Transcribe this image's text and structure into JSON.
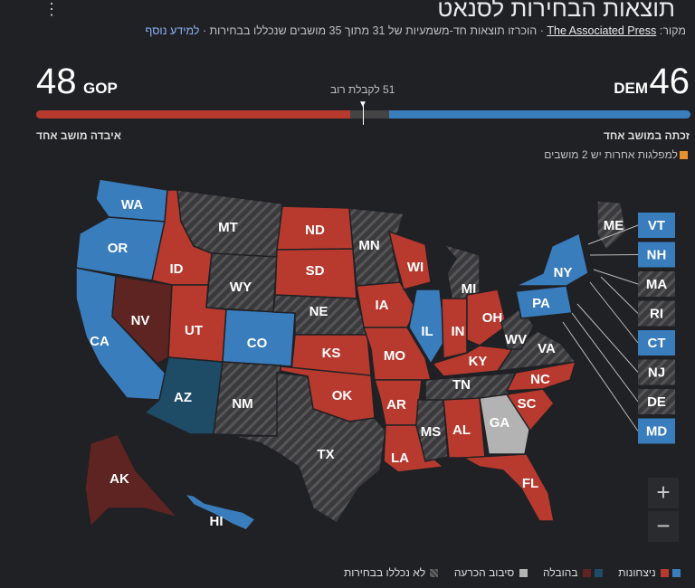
{
  "title": "תוצאות הבחירות לסנאט",
  "source": {
    "prefix": "מקור:",
    "link": "The Associated Press",
    "text": "· הוכרזו תוצאות חד-משמעיות של 31 מתוך 35 מושבים שנכללו בבחירות ·",
    "more": "למידע נוסף"
  },
  "summary": {
    "gop_count": "48",
    "gop_label": "GOP",
    "dem_count": "46",
    "dem_label": "DEM",
    "majority": "51 לקבלת רוב",
    "gop_note": "איבדה מושב אחד",
    "dem_note": "זכתה במושב אחד",
    "others": "למפלגות אחרות יש 2 מושבים",
    "gop_seats": 48,
    "dem_seats": 46,
    "total": 100
  },
  "colors": {
    "gop": "#b83a2f",
    "dem": "#3a7dbd",
    "gop_lead": "#5e2421",
    "dem_lead": "#1e4b66",
    "tossup": "#b3b3b3",
    "none": "#3a3a3c",
    "other": "#e8912d"
  },
  "states": [
    {
      "abbr": "WA",
      "status": "dem"
    },
    {
      "abbr": "OR",
      "status": "dem"
    },
    {
      "abbr": "CA",
      "status": "dem"
    },
    {
      "abbr": "NV",
      "status": "gop_lead"
    },
    {
      "abbr": "ID",
      "status": "gop"
    },
    {
      "abbr": "MT",
      "status": "none"
    },
    {
      "abbr": "WY",
      "status": "none"
    },
    {
      "abbr": "UT",
      "status": "gop"
    },
    {
      "abbr": "CO",
      "status": "dem"
    },
    {
      "abbr": "AZ",
      "status": "dem_lead"
    },
    {
      "abbr": "NM",
      "status": "none"
    },
    {
      "abbr": "ND",
      "status": "gop"
    },
    {
      "abbr": "SD",
      "status": "gop"
    },
    {
      "abbr": "NE",
      "status": "none"
    },
    {
      "abbr": "KS",
      "status": "gop"
    },
    {
      "abbr": "OK",
      "status": "gop"
    },
    {
      "abbr": "TX",
      "status": "none"
    },
    {
      "abbr": "MN",
      "status": "none"
    },
    {
      "abbr": "IA",
      "status": "gop"
    },
    {
      "abbr": "MO",
      "status": "gop"
    },
    {
      "abbr": "AR",
      "status": "gop"
    },
    {
      "abbr": "LA",
      "status": "gop"
    },
    {
      "abbr": "WI",
      "status": "gop"
    },
    {
      "abbr": "IL",
      "status": "dem"
    },
    {
      "abbr": "MI",
      "status": "none"
    },
    {
      "abbr": "IN",
      "status": "gop"
    },
    {
      "abbr": "OH",
      "status": "gop"
    },
    {
      "abbr": "KY",
      "status": "gop"
    },
    {
      "abbr": "TN",
      "status": "none"
    },
    {
      "abbr": "MS",
      "status": "none"
    },
    {
      "abbr": "AL",
      "status": "gop"
    },
    {
      "abbr": "GA",
      "status": "tossup"
    },
    {
      "abbr": "FL",
      "status": "gop"
    },
    {
      "abbr": "SC",
      "status": "gop"
    },
    {
      "abbr": "NC",
      "status": "gop"
    },
    {
      "abbr": "VA",
      "status": "none"
    },
    {
      "abbr": "WV",
      "status": "none"
    },
    {
      "abbr": "PA",
      "status": "dem"
    },
    {
      "abbr": "NY",
      "status": "dem"
    },
    {
      "abbr": "ME",
      "status": "none"
    },
    {
      "abbr": "AK",
      "status": "gop_lead"
    },
    {
      "abbr": "HI",
      "status": "dem"
    }
  ],
  "small_states": [
    {
      "abbr": "VT",
      "status": "dem"
    },
    {
      "abbr": "NH",
      "status": "dem"
    },
    {
      "abbr": "MA",
      "status": "none"
    },
    {
      "abbr": "RI",
      "status": "none"
    },
    {
      "abbr": "CT",
      "status": "dem"
    },
    {
      "abbr": "NJ",
      "status": "none"
    },
    {
      "abbr": "DE",
      "status": "none"
    },
    {
      "abbr": "MD",
      "status": "dem"
    }
  ],
  "legend": {
    "won": "ניצחונות",
    "leading": "בהובלה",
    "tossup": "סיבוב הכרעה",
    "none": "לא נכללו בבחירות"
  },
  "zoom": {
    "in": "+",
    "out": "−"
  }
}
